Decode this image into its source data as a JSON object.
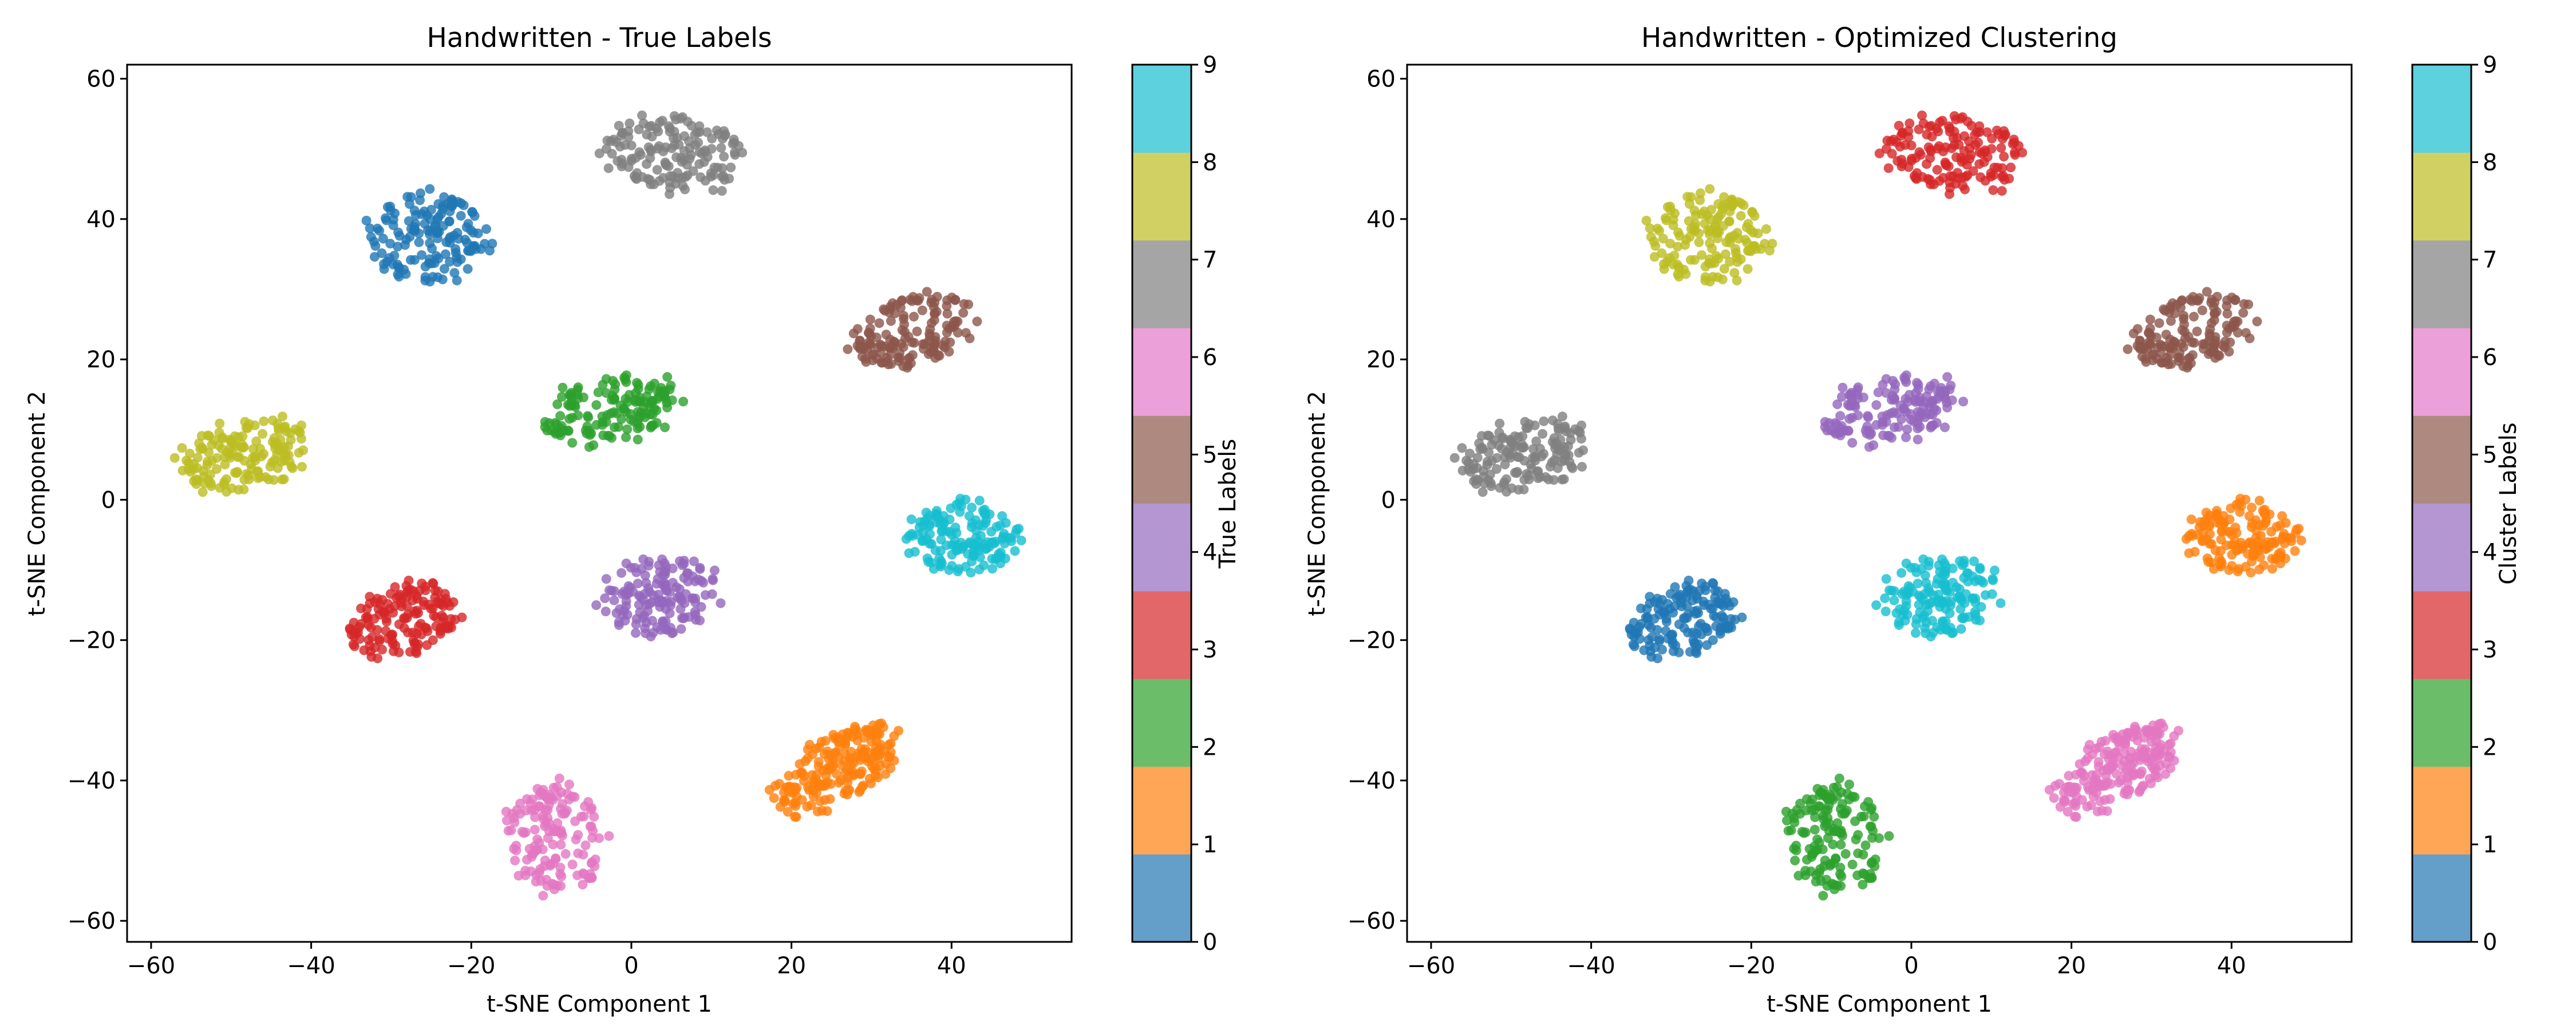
{
  "chart_data": [
    {
      "type": "scatter",
      "title": "Handwritten - True Labels",
      "xlabel": "t-SNE Component 1",
      "ylabel": "t-SNE Component 2",
      "xlim": [
        -63,
        55
      ],
      "ylim": [
        -63,
        62
      ],
      "xticks": [
        -60,
        -40,
        -20,
        0,
        20,
        40
      ],
      "yticks": [
        -60,
        -40,
        -20,
        0,
        20,
        40,
        60
      ],
      "colorbar": {
        "label": "True Labels",
        "ticks": [
          0,
          1,
          2,
          3,
          4,
          5,
          6,
          7,
          8,
          9
        ],
        "range": [
          0,
          9
        ]
      },
      "grid": false,
      "clusters": [
        {
          "label": 0,
          "cx": -25.5,
          "cy": 37.5,
          "rx": 8.0,
          "ry": 7.0,
          "tilt": 0,
          "n": 150
        },
        {
          "label": 1,
          "cx": 25.5,
          "cy": -38.5,
          "rx": 9.5,
          "ry": 4.8,
          "tilt": 35,
          "n": 200
        },
        {
          "label": 2,
          "cx": -2.5,
          "cy": 13.0,
          "rx": 9.0,
          "ry": 5.2,
          "tilt": 15,
          "n": 150
        },
        {
          "label": 3,
          "cx": -28.0,
          "cy": -17.0,
          "rx": 8.0,
          "ry": 5.0,
          "tilt": 22,
          "n": 150
        },
        {
          "label": 4,
          "cx": 3.5,
          "cy": -13.5,
          "rx": 8.0,
          "ry": 6.0,
          "tilt": 10,
          "n": 150
        },
        {
          "label": 5,
          "cx": 35.0,
          "cy": 24.0,
          "rx": 9.0,
          "ry": 5.0,
          "tilt": 22,
          "n": 150
        },
        {
          "label": 6,
          "cx": -9.5,
          "cy": -48.5,
          "rx": 6.5,
          "ry": 8.5,
          "tilt": 0,
          "n": 150
        },
        {
          "label": 7,
          "cx": 5.0,
          "cy": 49.0,
          "rx": 9.0,
          "ry": 6.0,
          "tilt": -10,
          "n": 150
        },
        {
          "label": 8,
          "cx": -48.5,
          "cy": 6.5,
          "rx": 9.0,
          "ry": 5.2,
          "tilt": 15,
          "n": 150
        },
        {
          "label": 9,
          "cx": 41.5,
          "cy": -5.5,
          "rx": 7.5,
          "ry": 5.8,
          "tilt": -8,
          "n": 150
        }
      ]
    },
    {
      "type": "scatter",
      "title": "Handwritten - Optimized Clustering",
      "xlabel": "t-SNE Component 1",
      "ylabel": "t-SNE Component 2",
      "xlim": [
        -63,
        55
      ],
      "ylim": [
        -63,
        62
      ],
      "xticks": [
        -60,
        -40,
        -20,
        0,
        20,
        40
      ],
      "yticks": [
        -60,
        -40,
        -20,
        0,
        20,
        40,
        60
      ],
      "colorbar": {
        "label": "Cluster Labels",
        "ticks": [
          0,
          1,
          2,
          3,
          4,
          5,
          6,
          7,
          8,
          9
        ],
        "range": [
          0,
          9
        ]
      },
      "grid": false,
      "clusters": [
        {
          "label": 8,
          "cx": -25.5,
          "cy": 37.5,
          "rx": 8.0,
          "ry": 7.0,
          "tilt": 0,
          "n": 150
        },
        {
          "label": 6,
          "cx": 25.5,
          "cy": -38.5,
          "rx": 9.5,
          "ry": 4.8,
          "tilt": 35,
          "n": 200
        },
        {
          "label": 4,
          "cx": -2.5,
          "cy": 13.0,
          "rx": 9.0,
          "ry": 5.2,
          "tilt": 15,
          "n": 150
        },
        {
          "label": 0,
          "cx": -28.0,
          "cy": -17.0,
          "rx": 8.0,
          "ry": 5.0,
          "tilt": 22,
          "n": 150
        },
        {
          "label": 9,
          "cx": 3.5,
          "cy": -13.5,
          "rx": 8.0,
          "ry": 6.0,
          "tilt": 10,
          "n": 150
        },
        {
          "label": 5,
          "cx": 35.0,
          "cy": 24.0,
          "rx": 9.0,
          "ry": 5.0,
          "tilt": 22,
          "n": 150
        },
        {
          "label": 2,
          "cx": -9.5,
          "cy": -48.5,
          "rx": 6.5,
          "ry": 8.5,
          "tilt": 0,
          "n": 150
        },
        {
          "label": 3,
          "cx": 5.0,
          "cy": 49.0,
          "rx": 9.0,
          "ry": 6.0,
          "tilt": -10,
          "n": 150
        },
        {
          "label": 7,
          "cx": -48.5,
          "cy": 6.5,
          "rx": 9.0,
          "ry": 5.2,
          "tilt": 15,
          "n": 150
        },
        {
          "label": 1,
          "cx": 41.5,
          "cy": -5.5,
          "rx": 7.5,
          "ry": 5.8,
          "tilt": -8,
          "n": 150
        }
      ]
    }
  ],
  "palette": [
    "#1f77b4",
    "#ff7f0e",
    "#2ca02c",
    "#d62728",
    "#9467bd",
    "#8c564b",
    "#e377c2",
    "#7f7f7f",
    "#bcbd22",
    "#17becf"
  ],
  "colorbar_palette": [
    "#649fca",
    "#ffa556",
    "#6cbd6a",
    "#e26768",
    "#b396d2",
    "#ae8980",
    "#eba0d9",
    "#a5a5a5",
    "#d1d163",
    "#5dd1de"
  ]
}
